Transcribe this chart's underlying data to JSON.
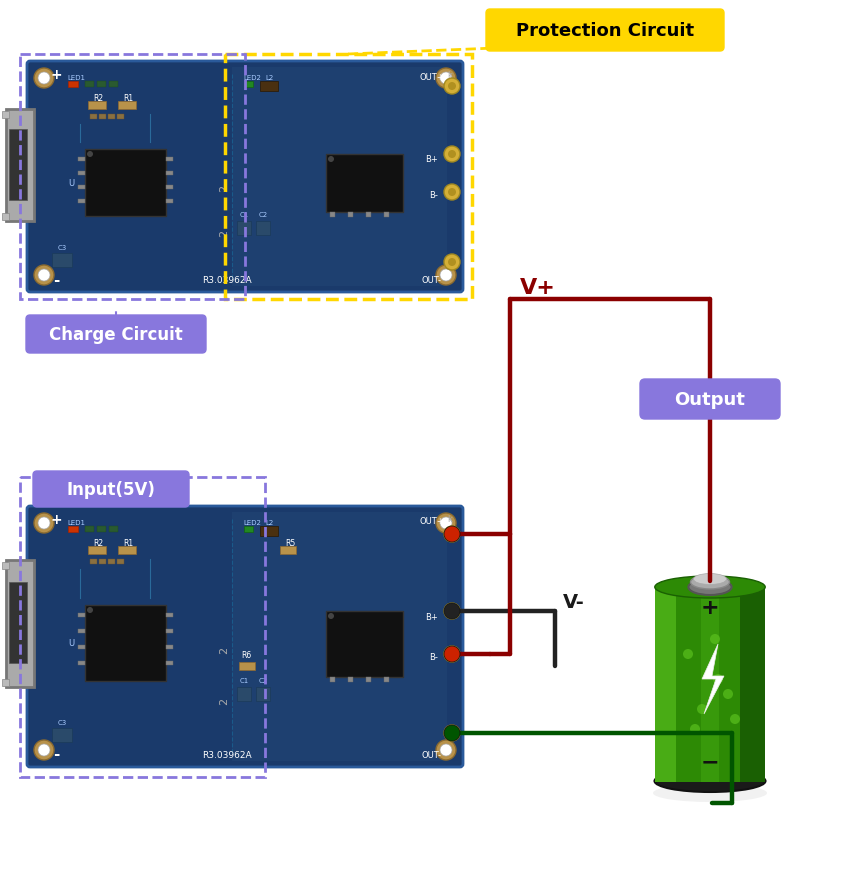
{
  "bg_color": "#ffffff",
  "protection_circuit_label": "Protection Circuit",
  "protection_circuit_color": "#FFD700",
  "charge_circuit_label": "Charge Circuit",
  "charge_circuit_color": "#8877DD",
  "input_label": "Input(5V)",
  "input_color": "#8877DD",
  "output_label": "Output",
  "output_color": "#8877DD",
  "vplus_label": "V+",
  "vplus_color": "#8B0000",
  "vminus_label": "V-",
  "vminus_color": "#1a1a1a",
  "wire_red": "#8B0000",
  "wire_black": "#222222",
  "wire_green": "#005500",
  "board_color": "#1a3a6b",
  "board_edge": "#2a5a9b",
  "usb_color": "#999999",
  "pad_gold": "#d4af37",
  "white": "#ffffff",
  "label_font": 11,
  "lw": 3
}
